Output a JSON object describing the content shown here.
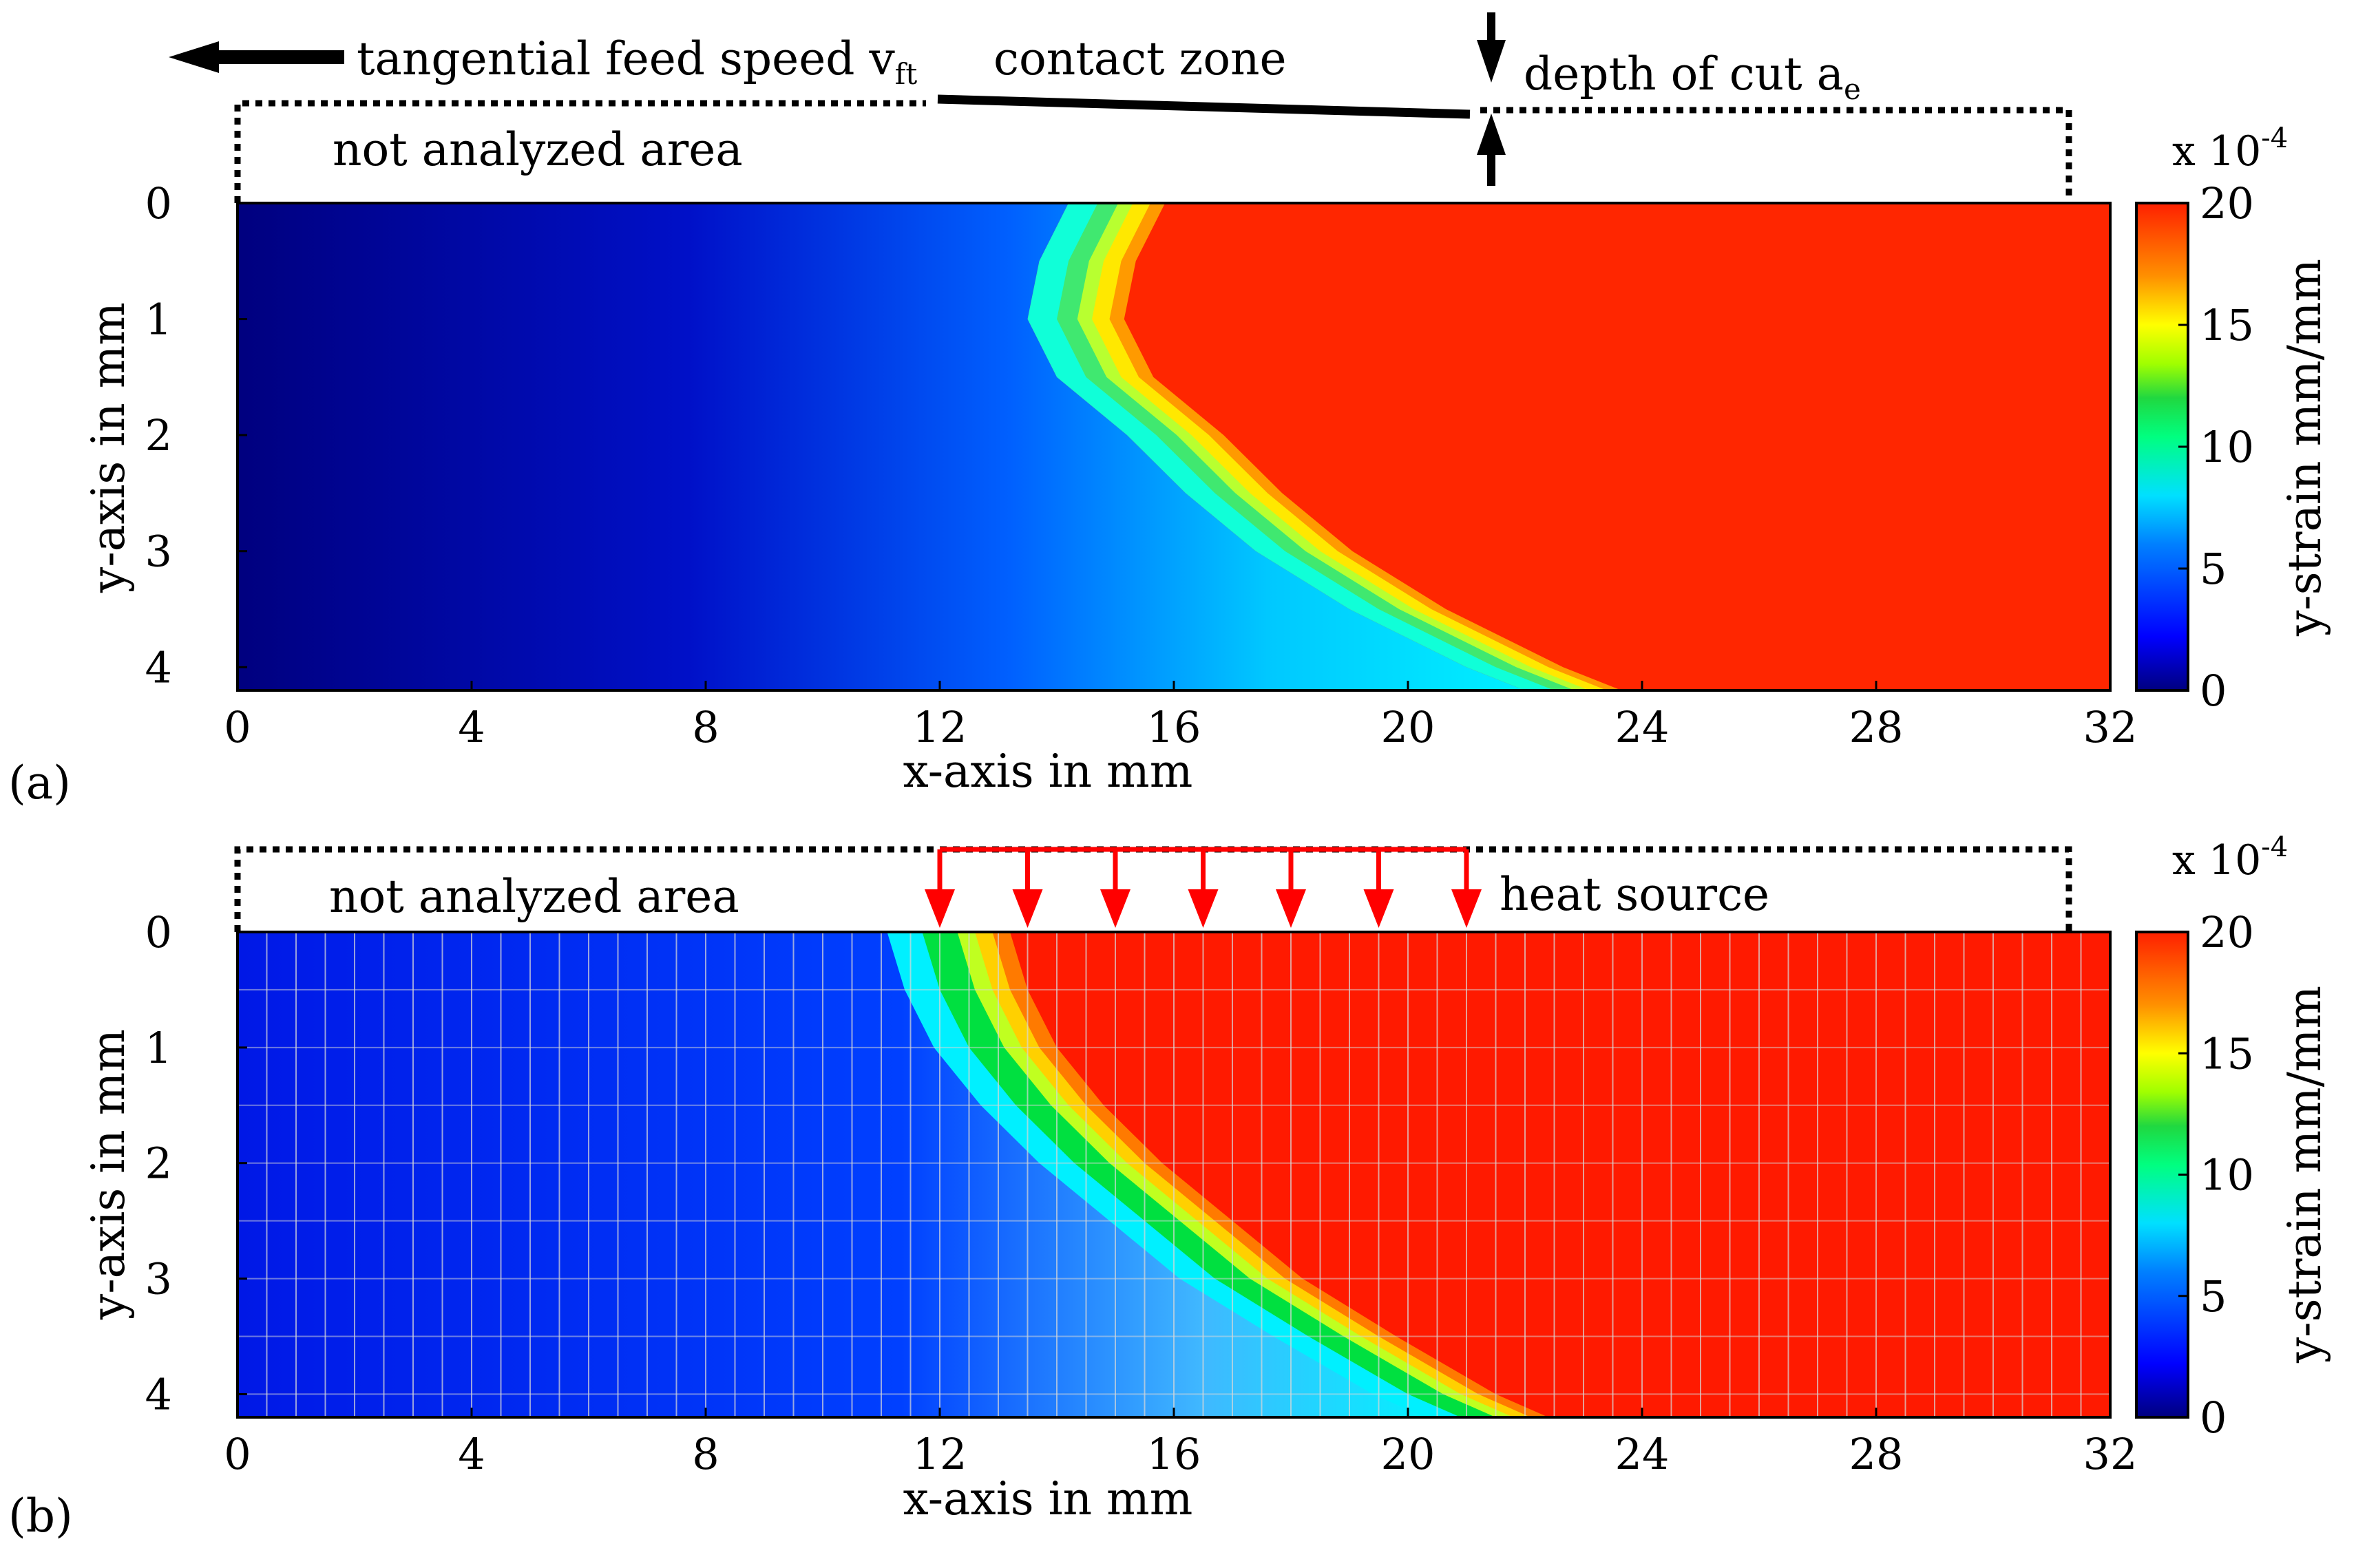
{
  "colors": {
    "jet": [
      "#00007f",
      "#0000d6",
      "#0030ff",
      "#008cff",
      "#00e4ff",
      "#30ffc6",
      "#00e060",
      "#7fff00",
      "#ffe800",
      "#ff9a00",
      "#ff4200",
      "#ff2600"
    ],
    "arrow_red": "#ff0000",
    "mesh_line": "#d8d8d8"
  },
  "chart_data": [
    {
      "type": "heatmap",
      "panel_label": "(a)",
      "xlabel": "x-axis in mm",
      "ylabel": "y-axis in mm",
      "xlim": [
        0,
        32
      ],
      "ylim": [
        0,
        4.2
      ],
      "x_ticks": [
        "0",
        "4",
        "8",
        "12",
        "16",
        "20",
        "24",
        "28",
        "32"
      ],
      "y_ticks": [
        "0",
        "1",
        "2",
        "3",
        "4"
      ],
      "colorbar": {
        "label": "y-strain mm/mm",
        "scale": "x 10",
        "exponent": "-4",
        "ticks": [
          "0",
          "5",
          "10",
          "15",
          "20"
        ],
        "range": [
          0,
          20
        ]
      },
      "annotations": {
        "tangential_feed_speed": "tangential feed speed v",
        "feed_speed_subscript": "ft",
        "contact_zone": "contact zone",
        "depth_of_cut": "depth of cut a",
        "depth_of_cut_subscript": "e",
        "not_analyzed": "not analyzed area"
      },
      "transition_front": {
        "y_mm": [
          0,
          0.5,
          1.0,
          1.5,
          2.0,
          2.5,
          3.0,
          3.5,
          4.0,
          4.2
        ],
        "x_mm": [
          14.8,
          14.3,
          14.1,
          14.6,
          15.8,
          16.8,
          18.0,
          19.6,
          21.6,
          22.6
        ]
      }
    },
    {
      "type": "heatmap",
      "panel_label": "(b)",
      "xlabel": "x-axis in mm",
      "ylabel": "y-axis in mm",
      "xlim": [
        0,
        32
      ],
      "ylim": [
        0,
        4.2
      ],
      "x_ticks": [
        "0",
        "4",
        "8",
        "12",
        "16",
        "20",
        "24",
        "28",
        "32"
      ],
      "y_ticks": [
        "0",
        "1",
        "2",
        "3",
        "4"
      ],
      "colorbar": {
        "label": "y-strain mm/mm",
        "scale": "x 10",
        "exponent": "-4",
        "ticks": [
          "0",
          "5",
          "10",
          "15",
          "20"
        ],
        "range": [
          0,
          20
        ]
      },
      "annotations": {
        "heat_source": "heat source",
        "not_analyzed": "not analyzed area"
      },
      "heat_source_arrows_x_mm": [
        12.0,
        13.5,
        15.0,
        16.5,
        18.0,
        19.5,
        21.0
      ],
      "mesh_spacing_mm": 0.5,
      "transition_front": {
        "y_mm": [
          0,
          0.5,
          1.0,
          1.5,
          2.0,
          2.5,
          3.0,
          3.5,
          4.0,
          4.2
        ],
        "x_mm": [
          12.0,
          12.3,
          12.8,
          13.6,
          14.6,
          15.8,
          17.0,
          18.6,
          20.3,
          21.2
        ]
      }
    }
  ]
}
